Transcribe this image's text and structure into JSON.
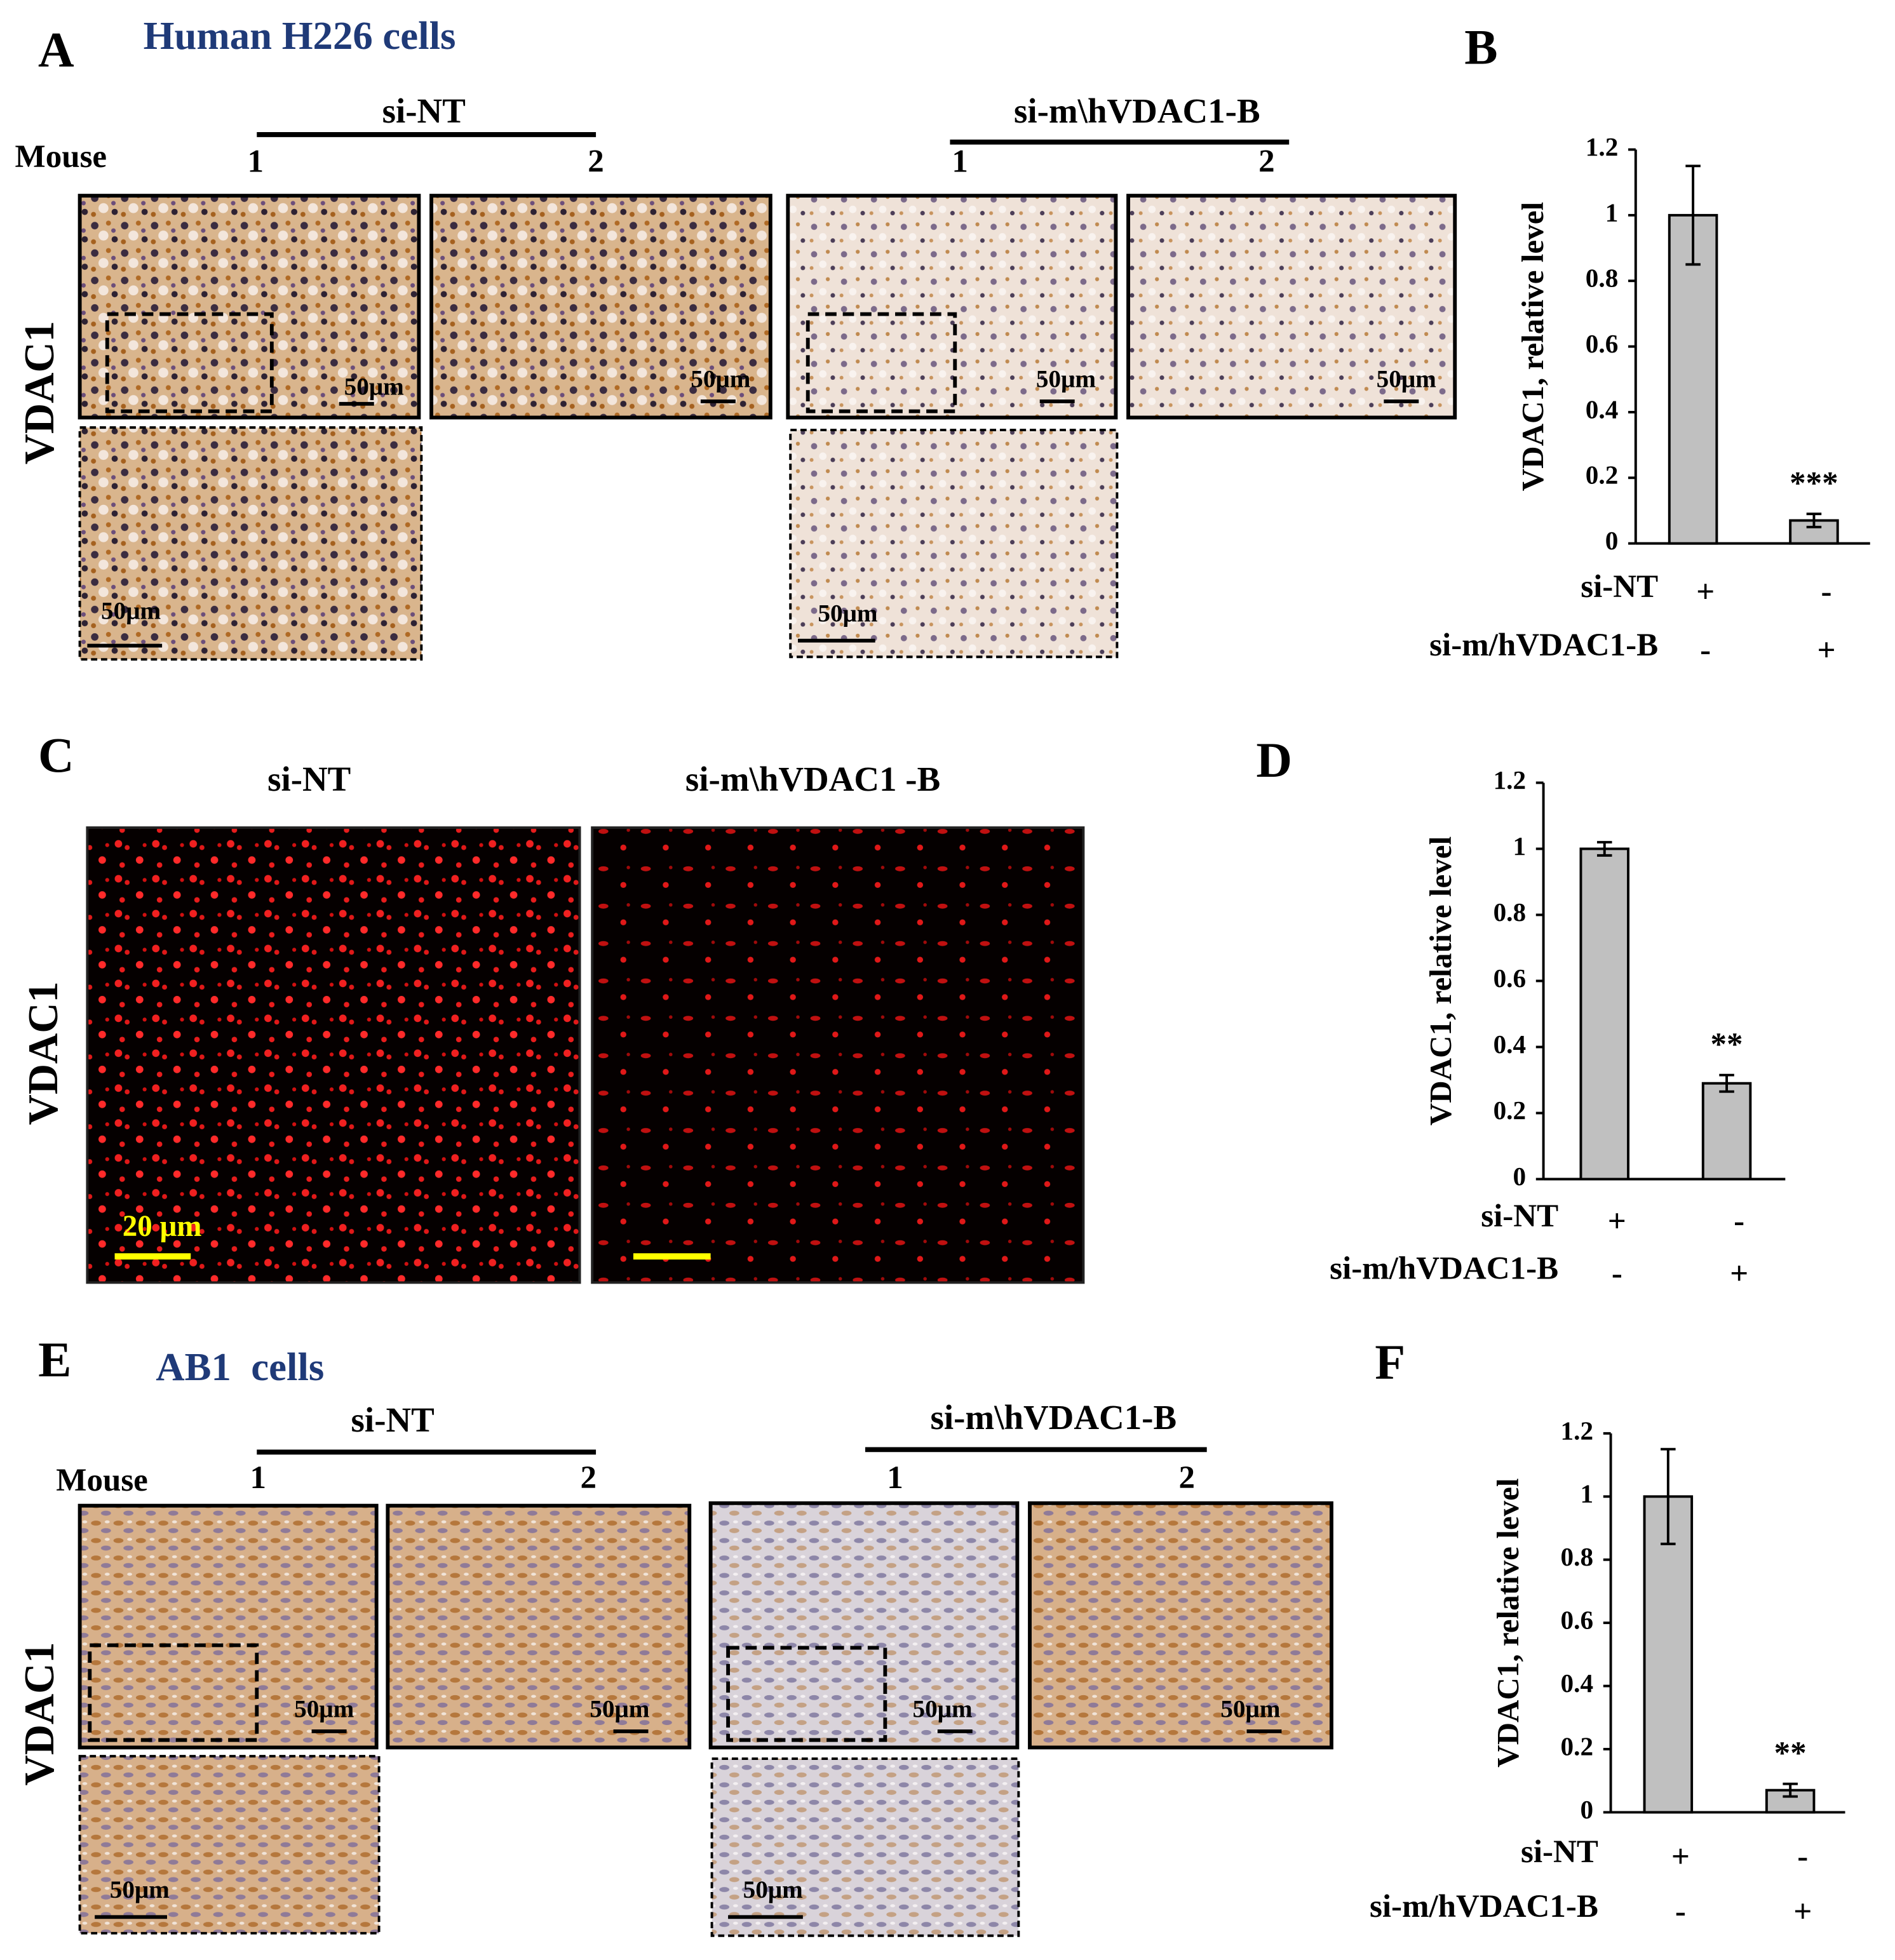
{
  "panel_labels": [
    "A",
    "B",
    "C",
    "D",
    "E",
    "F"
  ],
  "panel_a": {
    "title": "Human H226 cells",
    "groups": [
      "si-NT",
      "si-m\\hVDAC1-B"
    ],
    "mouse_label": "Mouse",
    "mice": [
      "1",
      "2",
      "1",
      "2"
    ],
    "row_label": "VDAC1",
    "scale_labels": [
      "50μm",
      "50μm",
      "50μm",
      "50μm",
      "50μm",
      "50μm"
    ]
  },
  "panel_c": {
    "columns": [
      "si-NT",
      "si-m\\hVDAC1 -B"
    ],
    "row_label": "VDAC1",
    "scale_label": "20 μm"
  },
  "panel_e": {
    "title": "AB1  cells",
    "groups": [
      "si-NT",
      "si-m\\hVDAC1-B"
    ],
    "mouse_label": "Mouse",
    "mice": [
      "1",
      "2",
      "1",
      "2"
    ],
    "row_label": "VDAC1",
    "scale_labels": [
      "50μm",
      "50μm",
      "50μm",
      "50μm",
      "50μm",
      "50μm"
    ]
  },
  "chart_data": [
    {
      "type": "bar",
      "y_label": "VDAC1, relative level",
      "values": [
        1,
        0.07
      ],
      "errors": [
        0.15,
        0.02
      ],
      "color": "#c0c0c0",
      "ylim": [
        0,
        1.2
      ],
      "yticks": [
        0,
        0.2,
        0.4,
        0.6,
        0.8,
        1,
        1.2
      ],
      "annotation": "***",
      "conditions": [
        {
          "name": "si-NT",
          "signs": [
            "+",
            "-"
          ]
        },
        {
          "name": "si-m/hVDAC1-B",
          "signs": [
            "-",
            "+"
          ]
        }
      ]
    },
    {
      "type": "bar",
      "y_label": "VDAC1, relative level",
      "values": [
        1,
        0.29
      ],
      "errors": [
        0.02,
        0.025
      ],
      "color": "#c0c0c0",
      "ylim": [
        0,
        1.2
      ],
      "yticks": [
        0,
        0.2,
        0.4,
        0.6,
        0.8,
        1,
        1.2
      ],
      "annotation": "**",
      "conditions": [
        {
          "name": "si-NT",
          "signs": [
            "+",
            "-"
          ]
        },
        {
          "name": "si-m/hVDAC1-B",
          "signs": [
            "-",
            "+"
          ]
        }
      ]
    },
    {
      "type": "bar",
      "y_label": "VDAC1, relative level",
      "values": [
        1,
        0.07
      ],
      "errors": [
        0.15,
        0.02
      ],
      "color": "#c0c0c0",
      "ylim": [
        0,
        1.2
      ],
      "yticks": [
        0,
        0.2,
        0.4,
        0.6,
        0.8,
        1,
        1.2
      ],
      "annotation": "**",
      "conditions": [
        {
          "name": "si-NT",
          "signs": [
            "+",
            "-"
          ]
        },
        {
          "name": "si-m/hVDAC1-B",
          "signs": [
            "-",
            "+"
          ]
        }
      ]
    }
  ]
}
